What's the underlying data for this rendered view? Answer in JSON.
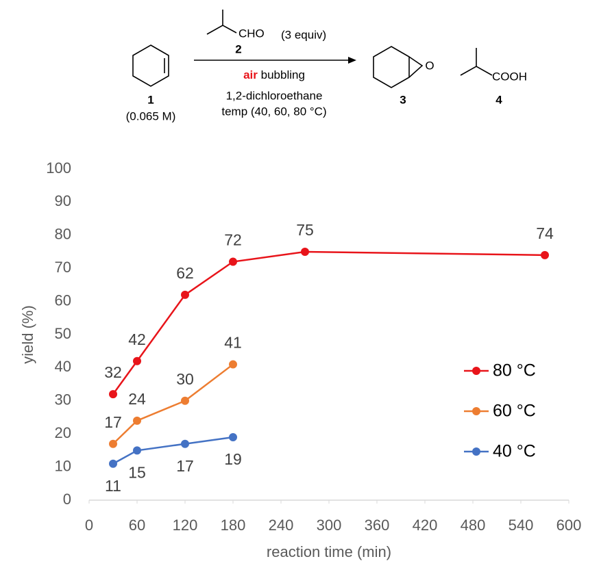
{
  "scheme": {
    "reactant_label": "1",
    "reactant_conc": "(0.065 M)",
    "reagent_group": "CHO",
    "reagent_label": "2",
    "reagent_equiv": "(3 equiv)",
    "condition_air": "air",
    "condition_bubbling": "bubbling",
    "solvent": "1,2-dichloroethane",
    "temperature": "temp (40, 60, 80 °C)",
    "epoxide_atom": "O",
    "product_label": "3",
    "acid_group": "COOH",
    "byproduct_label": "4"
  },
  "chart_data": {
    "type": "line",
    "xlabel": "reaction time (min)",
    "ylabel": "yield (%)",
    "xlim": [
      0,
      600
    ],
    "xticks": [
      0,
      60,
      120,
      180,
      240,
      300,
      360,
      420,
      480,
      540,
      600
    ],
    "ylim": [
      0,
      100
    ],
    "yticks": [
      0,
      10,
      20,
      30,
      40,
      50,
      60,
      70,
      80,
      90,
      100
    ],
    "grid": false,
    "legend": "right",
    "series": [
      {
        "name": "80 °C",
        "color": "#e8141a",
        "label_position": "above",
        "x": [
          30,
          60,
          120,
          180,
          270,
          570
        ],
        "values": [
          32,
          42,
          62,
          72,
          75,
          74
        ]
      },
      {
        "name": "60 °C",
        "color": "#ed7d31",
        "label_position": "above",
        "x": [
          30,
          60,
          120,
          180
        ],
        "values": [
          17,
          24,
          30,
          41
        ]
      },
      {
        "name": "40 °C",
        "color": "#4472c4",
        "label_position": "below",
        "x": [
          30,
          60,
          120,
          180
        ],
        "values": [
          11,
          15,
          17,
          19
        ]
      }
    ]
  }
}
